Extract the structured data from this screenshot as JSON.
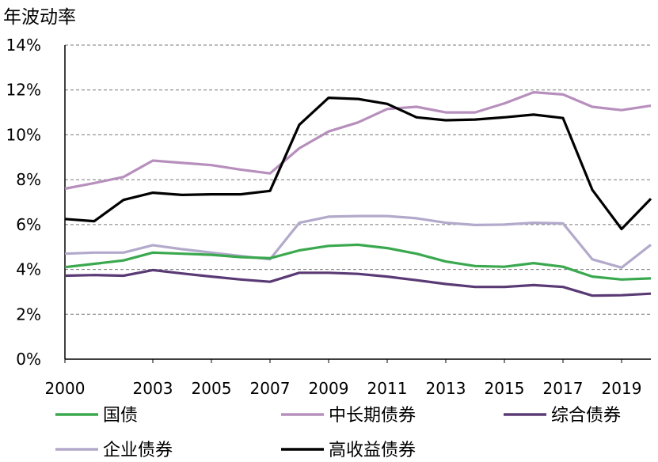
{
  "chart_data": {
    "type": "line",
    "title": "",
    "ylabel": "年波动率",
    "xlabel": "",
    "ylim": [
      0,
      14
    ],
    "y_tick_labels": [
      "0%",
      "2%",
      "4%",
      "6%",
      "8%",
      "10%",
      "12%",
      "14%"
    ],
    "x_tick_labels": [
      "2000",
      "2003",
      "2005",
      "2007",
      "2009",
      "2011",
      "2013",
      "2015",
      "2017",
      "2019"
    ],
    "grid": "horizontal dashed",
    "legend_position": "bottom",
    "x": [
      2000,
      2001,
      2002,
      2003,
      2004,
      2005,
      2006,
      2007,
      2008,
      2009,
      2010,
      2011,
      2012,
      2013,
      2014,
      2015,
      2016,
      2017,
      2018,
      2019,
      2020
    ],
    "series": [
      {
        "name": "国债",
        "color": "#3aa84e",
        "values": [
          4.1,
          4.25,
          4.4,
          4.75,
          4.7,
          4.65,
          4.55,
          4.5,
          4.85,
          5.05,
          5.1,
          4.95,
          4.7,
          4.35,
          4.15,
          4.12,
          4.28,
          4.12,
          3.68,
          3.55,
          3.6
        ]
      },
      {
        "name": "中长期债券",
        "color": "#b78fbd",
        "values": [
          7.6,
          7.85,
          8.12,
          8.85,
          8.75,
          8.65,
          8.45,
          8.28,
          9.4,
          10.15,
          10.55,
          11.15,
          11.25,
          11.0,
          11.0,
          11.4,
          11.9,
          11.8,
          11.25,
          11.1,
          11.3
        ]
      },
      {
        "name": "综合债券",
        "color": "#5a3a74",
        "values": [
          3.72,
          3.75,
          3.72,
          3.97,
          3.82,
          3.68,
          3.55,
          3.45,
          3.85,
          3.85,
          3.8,
          3.68,
          3.52,
          3.35,
          3.22,
          3.22,
          3.3,
          3.22,
          2.83,
          2.85,
          2.92
        ]
      },
      {
        "name": "企业债券",
        "color": "#b3a9cb",
        "values": [
          4.7,
          4.75,
          4.75,
          5.08,
          4.9,
          4.75,
          4.6,
          4.45,
          6.08,
          6.35,
          6.38,
          6.38,
          6.28,
          6.08,
          5.98,
          6.0,
          6.08,
          6.05,
          4.45,
          4.08,
          5.1
        ]
      },
      {
        "name": "高收益债券",
        "color": "#000000",
        "values": [
          6.25,
          6.15,
          7.1,
          7.42,
          7.32,
          7.35,
          7.35,
          7.5,
          10.45,
          11.65,
          11.6,
          11.38,
          10.78,
          10.65,
          10.68,
          10.78,
          10.9,
          10.75,
          7.55,
          5.8,
          7.15
        ]
      }
    ]
  }
}
